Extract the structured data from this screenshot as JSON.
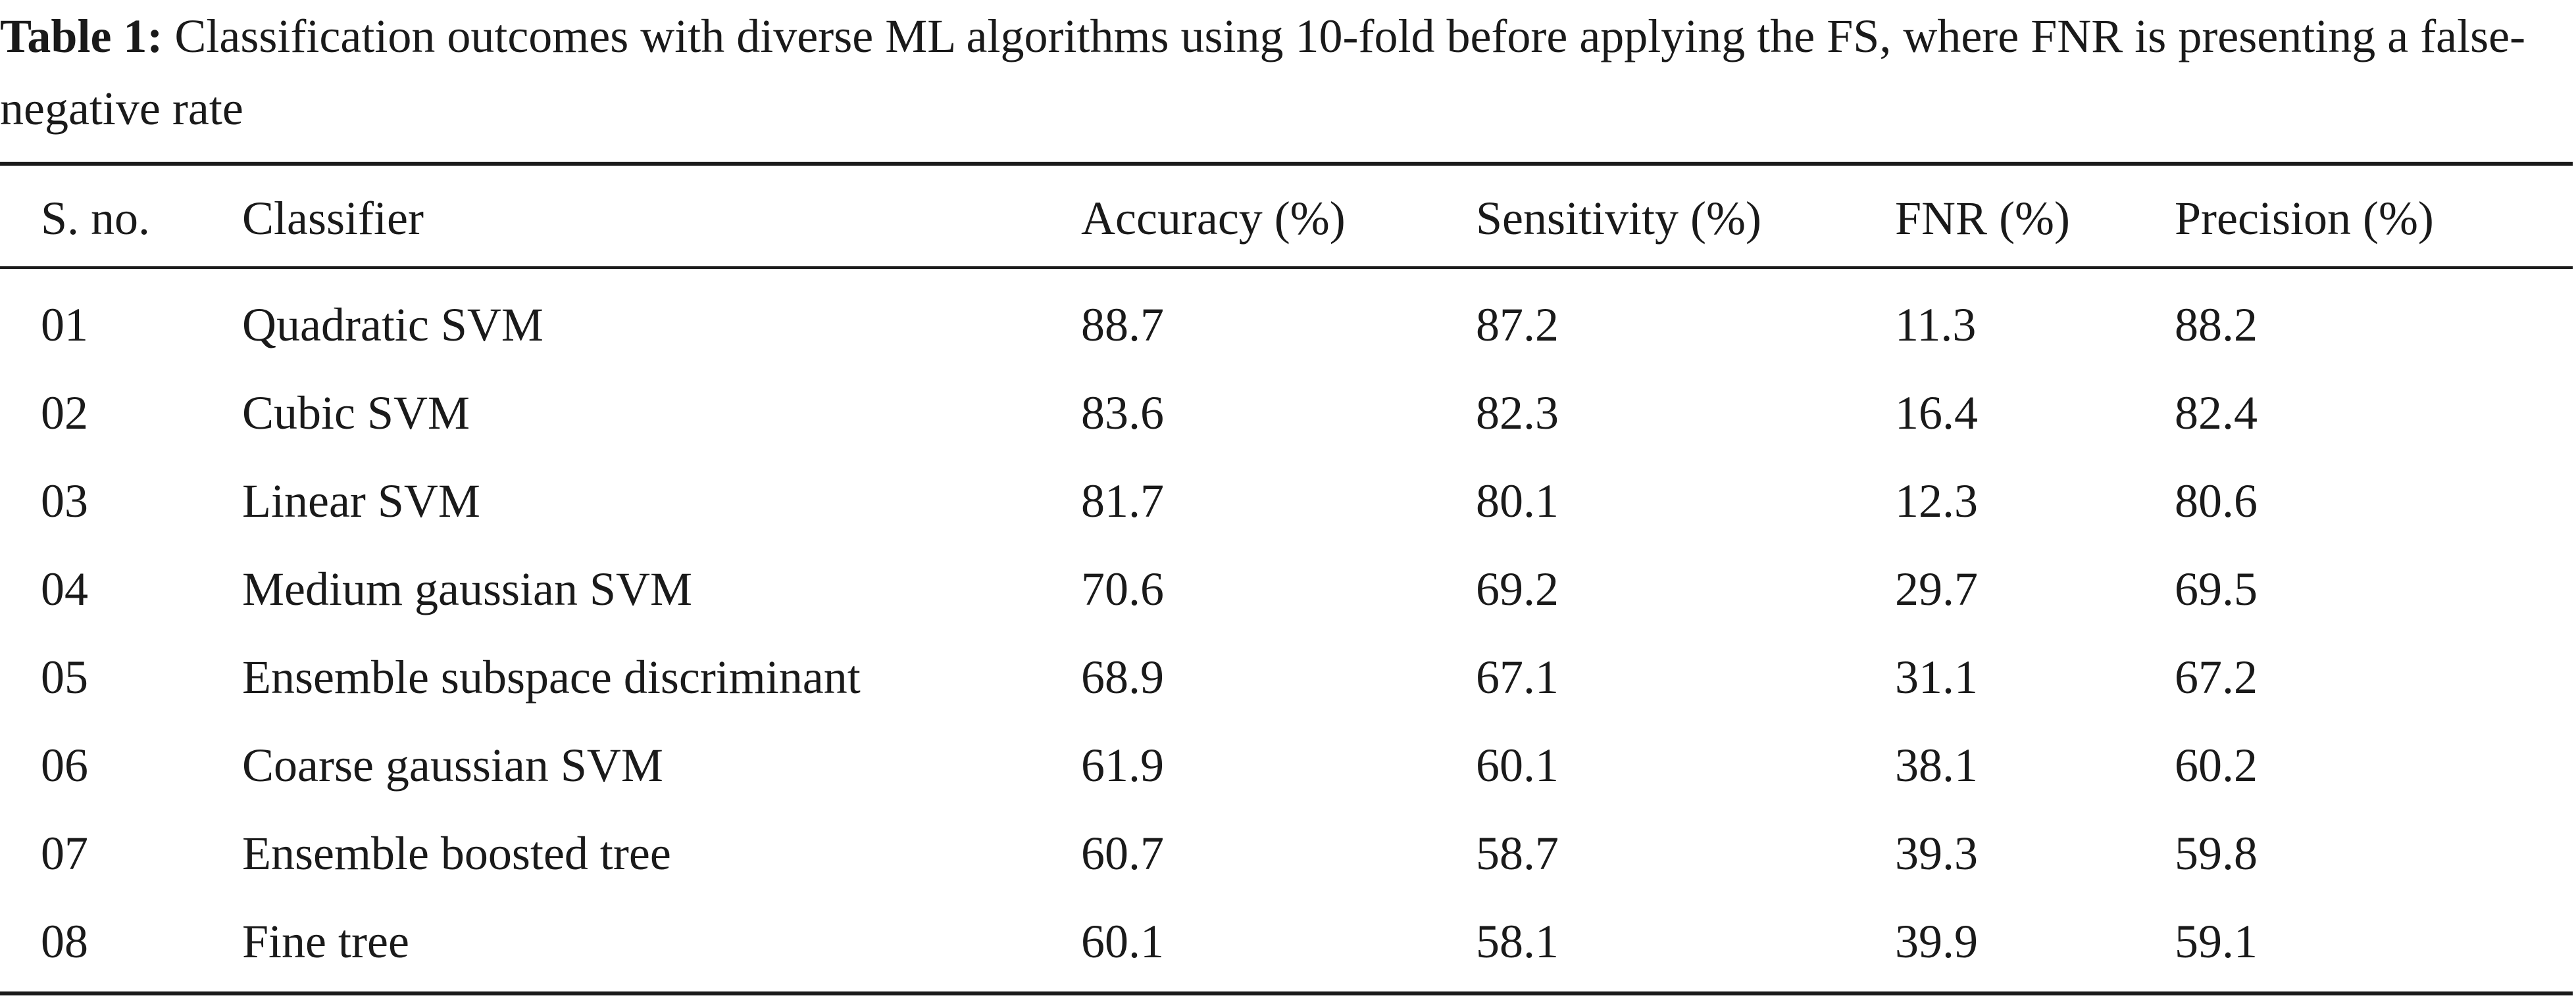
{
  "caption": {
    "label": "Table 1:",
    "text": "Classification outcomes with diverse ML algorithms using 10-fold before applying the FS, where FNR is presenting a false-negative rate"
  },
  "table": {
    "headers": [
      "S. no.",
      "Classifier",
      "Accuracy (%)",
      "Sensitivity (%)",
      "FNR (%)",
      "Precision (%)"
    ],
    "rows": [
      [
        "01",
        "Quadratic SVM",
        "88.7",
        "87.2",
        "11.3",
        "88.2"
      ],
      [
        "02",
        "Cubic SVM",
        "83.6",
        "82.3",
        "16.4",
        "82.4"
      ],
      [
        "03",
        "Linear SVM",
        "81.7",
        "80.1",
        "12.3",
        "80.6"
      ],
      [
        "04",
        "Medium gaussian SVM",
        "70.6",
        "69.2",
        "29.7",
        "69.5"
      ],
      [
        "05",
        "Ensemble subspace discriminant",
        "68.9",
        "67.1",
        "31.1",
        "67.2"
      ],
      [
        "06",
        "Coarse gaussian SVM",
        "61.9",
        "60.1",
        "38.1",
        "60.2"
      ],
      [
        "07",
        "Ensemble boosted tree",
        "60.7",
        "58.7",
        "39.3",
        "59.8"
      ],
      [
        "08",
        "Fine tree",
        "60.1",
        "58.1",
        "39.9",
        "59.1"
      ]
    ]
  }
}
